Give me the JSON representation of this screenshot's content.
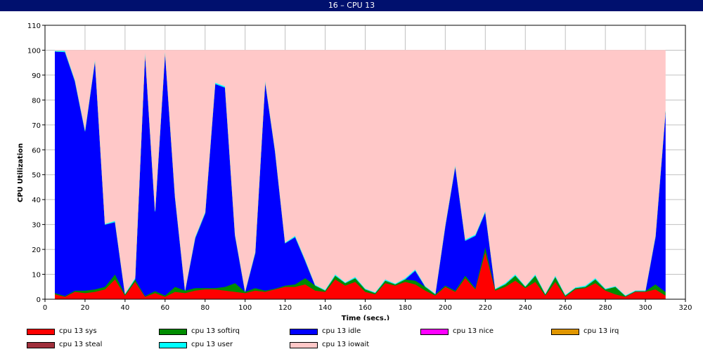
{
  "window": {
    "title": "16 – CPU 13"
  },
  "chart_data": {
    "type": "area",
    "stacked": true,
    "xlabel": "Time (secs.)",
    "ylabel": "CPU Utilization",
    "xlim": [
      0,
      320
    ],
    "ylim": [
      0,
      110
    ],
    "xticks": [
      0,
      20,
      40,
      60,
      80,
      100,
      120,
      140,
      160,
      180,
      200,
      220,
      240,
      260,
      280,
      300,
      320
    ],
    "yticks": [
      0,
      10,
      20,
      30,
      40,
      50,
      60,
      70,
      80,
      90,
      100,
      110
    ],
    "grid": true,
    "legend_position": "bottom",
    "x": [
      5,
      10,
      15,
      20,
      25,
      30,
      35,
      40,
      45,
      50,
      55,
      60,
      65,
      70,
      75,
      80,
      85,
      90,
      95,
      100,
      105,
      110,
      115,
      120,
      125,
      130,
      135,
      140,
      145,
      150,
      155,
      160,
      165,
      170,
      175,
      180,
      185,
      190,
      195,
      200,
      205,
      210,
      215,
      220,
      225,
      230,
      235,
      240,
      245,
      250,
      255,
      260,
      265,
      270,
      275,
      280,
      285,
      290,
      295,
      300,
      305,
      310
    ],
    "series": [
      {
        "name": "cpu 13 sys",
        "color": "#ff0000",
        "values": [
          2,
          1,
          3,
          2.5,
          3,
          4,
          8,
          1.5,
          7,
          1,
          2.5,
          1,
          3,
          2.5,
          3.5,
          4,
          4,
          3.5,
          3,
          2.5,
          3.5,
          3,
          4,
          5,
          5,
          6,
          3.5,
          3,
          8,
          5.5,
          7,
          3,
          2,
          6.5,
          5.5,
          7,
          6,
          3.5,
          1.5,
          5,
          3,
          8.5,
          4,
          19,
          3.5,
          5,
          7.5,
          4.5,
          7,
          1.5,
          7,
          1,
          4,
          4.5,
          6.5,
          3.5,
          2,
          1,
          3,
          3,
          4,
          1.5
        ]
      },
      {
        "name": "cpu 13 softirq",
        "color": "#008c00",
        "values": [
          0.5,
          0.3,
          0.5,
          1,
          1,
          1,
          2,
          0.5,
          1,
          0.3,
          0.8,
          0.5,
          2,
          1,
          1,
          0.5,
          0.5,
          1.5,
          3.5,
          0.5,
          1,
          0.5,
          0.3,
          0.5,
          1,
          2.5,
          2,
          0.5,
          1.5,
          1,
          1.5,
          1,
          0.5,
          1,
          0.5,
          1,
          1.5,
          1.5,
          0.5,
          0.5,
          0.5,
          1,
          0.5,
          2,
          0.5,
          1,
          2,
          0.5,
          2.5,
          0.5,
          2,
          0.5,
          0.5,
          0.5,
          1.5,
          0.5,
          3,
          0.3,
          0.3,
          0.3,
          2,
          1.5
        ]
      },
      {
        "name": "cpu 13 idle",
        "color": "#0000ff",
        "values": [
          97,
          98,
          84,
          64,
          92,
          25,
          21,
          0,
          0,
          98,
          32,
          98,
          36,
          0,
          20,
          30,
          82,
          80,
          19,
          0,
          14,
          84,
          55,
          17,
          19,
          7,
          0,
          0,
          0,
          0,
          0,
          0,
          0,
          0,
          0,
          0,
          4,
          0,
          0,
          24,
          50,
          14,
          21,
          14,
          0,
          0,
          0,
          0,
          0,
          0,
          0,
          0,
          0,
          0,
          0,
          0,
          0,
          0,
          0,
          0,
          19,
          72
        ]
      },
      {
        "name": "cpu 13 nice",
        "color": "#ff00ff",
        "values": [
          0,
          0,
          0,
          0,
          0,
          0,
          0,
          0,
          0,
          0,
          0,
          0,
          0,
          0,
          0,
          0,
          0,
          0,
          0,
          0,
          0,
          0,
          0,
          0,
          0,
          0,
          0,
          0,
          0,
          0,
          0,
          0,
          0,
          0,
          0,
          0,
          0,
          0,
          0,
          0,
          0,
          0,
          0,
          0,
          0,
          0,
          0,
          0,
          0,
          0,
          0,
          0,
          0,
          0,
          0,
          0,
          0,
          0,
          0,
          0,
          0,
          0
        ]
      },
      {
        "name": "cpu 13 irq",
        "color": "#e09600",
        "values": [
          0,
          0,
          0,
          0,
          0,
          0,
          0,
          0,
          0,
          0,
          0,
          0,
          0,
          0,
          0,
          0,
          0,
          0,
          0,
          0,
          0,
          0,
          0,
          0,
          0,
          0,
          0,
          0,
          0,
          0,
          0,
          0,
          0,
          0,
          0,
          0,
          0,
          0,
          0,
          0,
          0,
          0,
          0,
          0,
          0,
          0,
          0,
          0,
          0,
          0,
          0,
          0,
          0,
          0,
          0,
          0,
          0,
          0,
          0,
          0,
          0,
          0
        ]
      },
      {
        "name": "cpu 13 steal",
        "color": "#a0303c",
        "values": [
          0,
          0,
          0,
          0,
          0,
          0,
          0,
          0,
          0,
          0,
          0,
          0,
          0,
          0,
          0,
          0,
          0,
          0,
          0,
          0,
          0,
          0,
          0,
          0,
          0,
          0,
          0,
          0,
          0,
          0,
          0,
          0,
          0,
          0,
          0,
          0,
          0,
          0,
          0,
          0,
          0,
          0,
          0,
          0,
          0,
          0,
          0,
          0,
          0,
          0,
          0,
          0,
          0,
          0,
          0,
          0,
          0,
          0,
          0,
          0,
          0,
          0
        ]
      },
      {
        "name": "cpu 13 user",
        "color": "#00ffff",
        "values": [
          0.3,
          0.5,
          0.5,
          0.5,
          0.5,
          0.3,
          0.5,
          0.3,
          0.5,
          0.5,
          0.5,
          0.5,
          0.5,
          0.3,
          0.5,
          0.5,
          0.5,
          0.5,
          0.5,
          0.3,
          0.5,
          0.5,
          0.5,
          0.3,
          0.5,
          0.5,
          0.3,
          0.3,
          0.5,
          0.3,
          0.5,
          0.3,
          0.3,
          0.5,
          0.3,
          0.5,
          0.5,
          0.3,
          0.3,
          0.5,
          0.5,
          0.5,
          0.5,
          0.5,
          0.3,
          0.5,
          0.5,
          0.3,
          0.5,
          0.3,
          0.5,
          0.3,
          0.3,
          0.5,
          0.5,
          0.3,
          0.3,
          0.3,
          0.3,
          0.3,
          0.5,
          0.5
        ]
      },
      {
        "name": "cpu 13 iowait",
        "color": "#ffc8c8",
        "fill_to": 100
      }
    ]
  }
}
